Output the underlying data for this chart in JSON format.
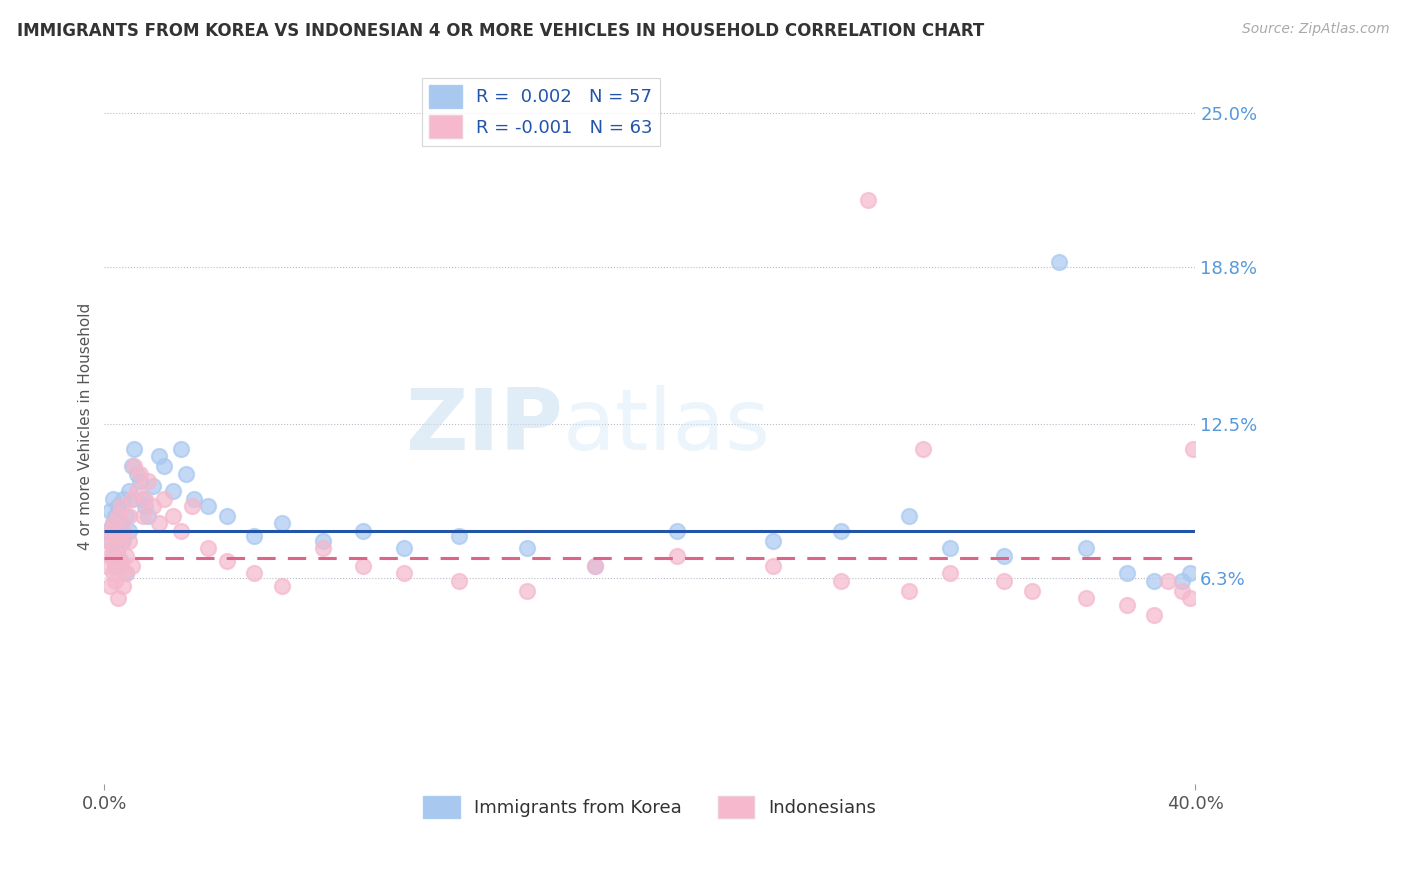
{
  "title": "IMMIGRANTS FROM KOREA VS INDONESIAN 4 OR MORE VEHICLES IN HOUSEHOLD CORRELATION CHART",
  "source": "Source: ZipAtlas.com",
  "ylabel": "4 or more Vehicles in Household",
  "xlim": [
    0.0,
    0.4
  ],
  "ylim": [
    -0.02,
    0.268
  ],
  "ytick_positions": [
    0.063,
    0.125,
    0.188,
    0.25
  ],
  "ytick_labels": [
    "6.3%",
    "12.5%",
    "18.8%",
    "25.0%"
  ],
  "korea_R": 0.002,
  "korea_N": 57,
  "indonesian_R": -0.001,
  "indonesian_N": 63,
  "korea_color": "#a8c8f0",
  "indonesian_color": "#f5b8cc",
  "korea_line_color": "#2255aa",
  "indonesian_line_color": "#dd6688",
  "watermark_zip": "ZIP",
  "watermark_atlas": "atlas",
  "legend_label_korea": "Immigrants from Korea",
  "legend_label_indonesian": "Indonesians",
  "korea_line_y": 0.082,
  "indonesia_line_y": 0.071,
  "korea_x": [
    0.001,
    0.002,
    0.002,
    0.003,
    0.003,
    0.003,
    0.004,
    0.004,
    0.004,
    0.005,
    0.005,
    0.005,
    0.006,
    0.006,
    0.007,
    0.007,
    0.008,
    0.008,
    0.009,
    0.009,
    0.01,
    0.01,
    0.011,
    0.012,
    0.013,
    0.014,
    0.015,
    0.016,
    0.018,
    0.02,
    0.022,
    0.025,
    0.028,
    0.03,
    0.033,
    0.038,
    0.045,
    0.055,
    0.065,
    0.08,
    0.095,
    0.11,
    0.13,
    0.155,
    0.18,
    0.21,
    0.245,
    0.27,
    0.295,
    0.31,
    0.33,
    0.36,
    0.375,
    0.385,
    0.35,
    0.395,
    0.398
  ],
  "korea_y": [
    0.082,
    0.078,
    0.09,
    0.072,
    0.085,
    0.095,
    0.075,
    0.088,
    0.068,
    0.08,
    0.092,
    0.075,
    0.085,
    0.07,
    0.095,
    0.078,
    0.088,
    0.065,
    0.082,
    0.098,
    0.108,
    0.095,
    0.115,
    0.105,
    0.102,
    0.095,
    0.092,
    0.088,
    0.1,
    0.112,
    0.108,
    0.098,
    0.115,
    0.105,
    0.095,
    0.092,
    0.088,
    0.08,
    0.085,
    0.078,
    0.082,
    0.075,
    0.08,
    0.075,
    0.068,
    0.082,
    0.078,
    0.082,
    0.088,
    0.075,
    0.072,
    0.075,
    0.065,
    0.062,
    0.19,
    0.062,
    0.065
  ],
  "indonesia_x": [
    0.001,
    0.001,
    0.002,
    0.002,
    0.002,
    0.003,
    0.003,
    0.003,
    0.004,
    0.004,
    0.004,
    0.005,
    0.005,
    0.005,
    0.006,
    0.006,
    0.006,
    0.007,
    0.007,
    0.008,
    0.008,
    0.009,
    0.009,
    0.01,
    0.01,
    0.011,
    0.012,
    0.013,
    0.014,
    0.015,
    0.016,
    0.018,
    0.02,
    0.022,
    0.025,
    0.028,
    0.032,
    0.038,
    0.045,
    0.055,
    0.065,
    0.08,
    0.095,
    0.11,
    0.13,
    0.155,
    0.18,
    0.21,
    0.245,
    0.27,
    0.295,
    0.31,
    0.33,
    0.34,
    0.36,
    0.375,
    0.385,
    0.39,
    0.395,
    0.398,
    0.399,
    0.3,
    0.28
  ],
  "indonesia_y": [
    0.068,
    0.078,
    0.072,
    0.06,
    0.082,
    0.065,
    0.075,
    0.085,
    0.07,
    0.08,
    0.062,
    0.072,
    0.088,
    0.055,
    0.078,
    0.068,
    0.092,
    0.06,
    0.082,
    0.072,
    0.065,
    0.078,
    0.088,
    0.095,
    0.068,
    0.108,
    0.098,
    0.105,
    0.088,
    0.095,
    0.102,
    0.092,
    0.085,
    0.095,
    0.088,
    0.082,
    0.092,
    0.075,
    0.07,
    0.065,
    0.06,
    0.075,
    0.068,
    0.065,
    0.062,
    0.058,
    0.068,
    0.072,
    0.068,
    0.062,
    0.058,
    0.065,
    0.062,
    0.058,
    0.055,
    0.052,
    0.048,
    0.062,
    0.058,
    0.055,
    0.115,
    0.115,
    0.215
  ]
}
